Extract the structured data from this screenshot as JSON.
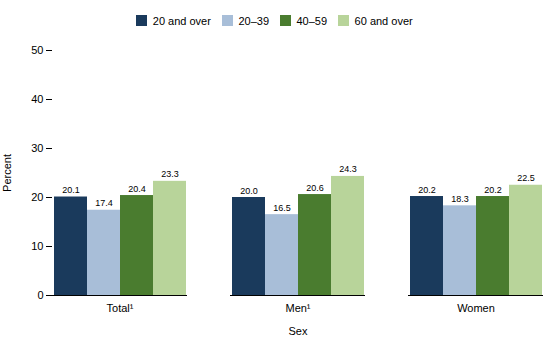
{
  "chart_data": {
    "type": "bar",
    "categories": [
      "Total¹",
      "Men¹",
      "Women"
    ],
    "series": [
      {
        "name": "20 and over",
        "values": [
          20.1,
          20.0,
          20.2
        ],
        "value_labels": [
          "20.1",
          "20.0",
          "20.2"
        ],
        "color": "#1a3a5c"
      },
      {
        "name": "20–39",
        "values": [
          17.4,
          16.5,
          18.3
        ],
        "value_labels": [
          "17.4",
          "16.5",
          "18.3"
        ],
        "color": "#a8bed8"
      },
      {
        "name": "40–59",
        "values": [
          20.4,
          20.6,
          20.2
        ],
        "value_labels": [
          "20.4",
          "20.6",
          "20.2"
        ],
        "color": "#4a7c2f"
      },
      {
        "name": "60 and over",
        "values": [
          23.3,
          24.3,
          22.5
        ],
        "value_labels": [
          "23.3",
          "24.3",
          "22.5"
        ],
        "color": "#b8d49a"
      }
    ],
    "xlabel": "Sex",
    "ylabel": "Percent",
    "ylim": [
      0,
      50
    ],
    "yticks": [
      0,
      10,
      20,
      30,
      40,
      50
    ],
    "grid": false,
    "legend": "top",
    "data_labels": true
  }
}
